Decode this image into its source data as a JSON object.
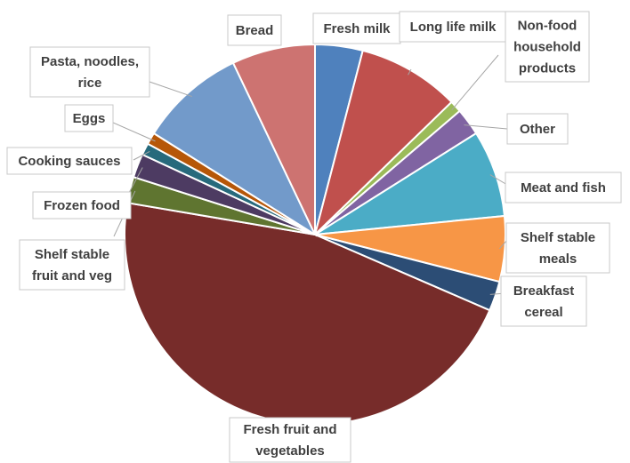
{
  "chart_data": {
    "type": "pie",
    "start_angle_deg": 0,
    "direction": "clockwise",
    "legend": "none",
    "slices": [
      {
        "label": "Fresh milk",
        "value": 4.0,
        "color": "#4f81bd"
      },
      {
        "label": "Long life milk",
        "value": 8.6,
        "color": "#c0504d"
      },
      {
        "label": "Non-food household products",
        "value": 1.0,
        "color": "#9bbb59"
      },
      {
        "label": "Other",
        "value": 2.3,
        "color": "#8064a2"
      },
      {
        "label": "Meat and fish",
        "value": 7.3,
        "color": "#4bacc6"
      },
      {
        "label": "Shelf stable meals",
        "value": 5.5,
        "color": "#f79646"
      },
      {
        "label": "Breakfast cereal",
        "value": 2.5,
        "color": "#2c4d75"
      },
      {
        "label": "Fresh fruit and vegetables",
        "value": 45.7,
        "color": "#772c2a"
      },
      {
        "label": "Shelf stable fruit and veg",
        "value": 2.2,
        "color": "#5f7530"
      },
      {
        "label": "Frozen food",
        "value": 2.0,
        "color": "#4d3b62"
      },
      {
        "label": "Cooking sauces",
        "value": 1.0,
        "color": "#276a7c"
      },
      {
        "label": "Eggs",
        "value": 1.0,
        "color": "#b65708"
      },
      {
        "label": "Pasta, noodles, rice",
        "value": 8.9,
        "color": "#729aca"
      },
      {
        "label": "Bread",
        "value": 7.0,
        "color": "#cd7371"
      }
    ]
  }
}
